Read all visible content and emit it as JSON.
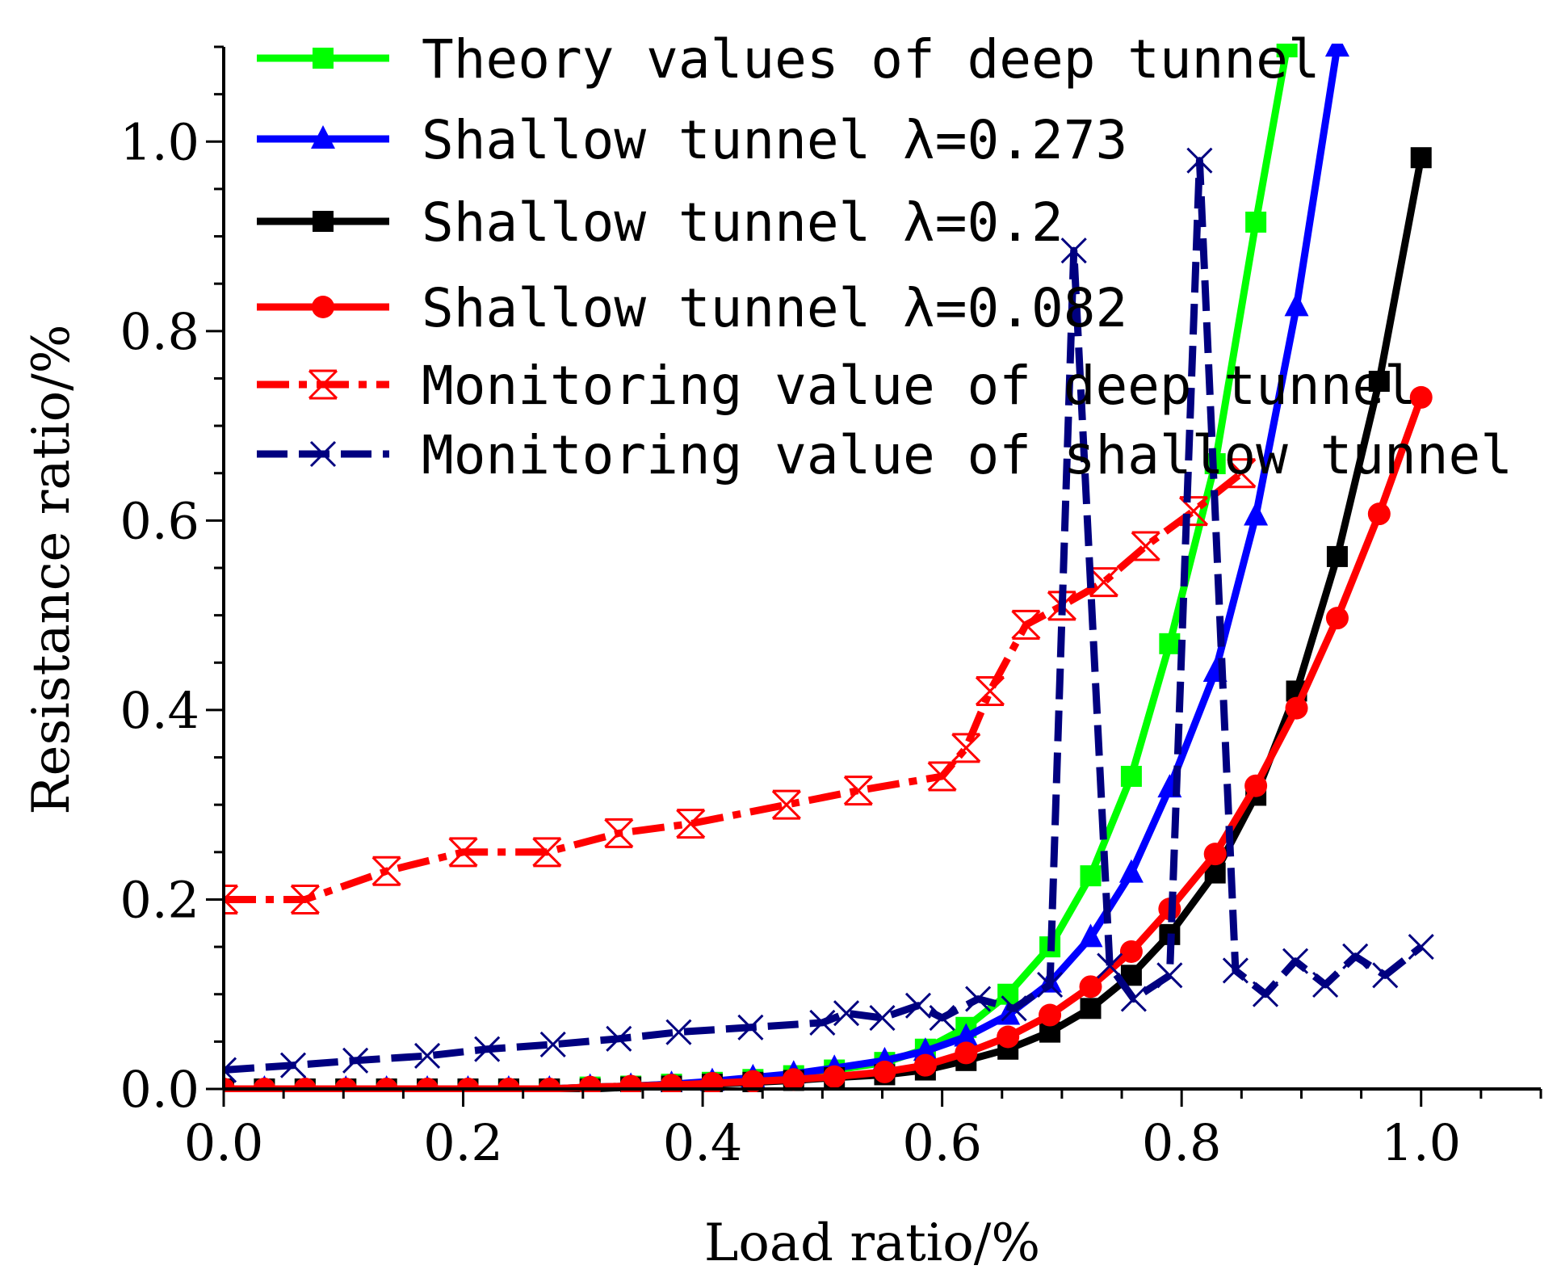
{
  "chart_data": {
    "type": "line",
    "title": "",
    "xlabel": "Load ratio/%",
    "ylabel": "Resistance ratio/%",
    "xlim": [
      0.0,
      1.1
    ],
    "ylim": [
      0.0,
      1.1
    ],
    "xticks": [
      0.0,
      0.2,
      0.4,
      0.6,
      0.8,
      1.0
    ],
    "yticks": [
      0.0,
      0.2,
      0.4,
      0.6,
      0.8,
      1.0
    ],
    "xtick_labels": [
      "0.0",
      "0.2",
      "0.4",
      "0.6",
      "0.8",
      "1.0"
    ],
    "ytick_labels": [
      "0.0",
      "0.2",
      "0.4",
      "0.6",
      "0.8",
      "1.0"
    ],
    "grid": false,
    "legend_position": "top",
    "series": [
      {
        "name": "Theory values of deep tunnel",
        "color": "#00ff00",
        "marker": "square",
        "line": "solid",
        "x": [
          0.0,
          0.034,
          0.068,
          0.102,
          0.136,
          0.17,
          0.204,
          0.238,
          0.272,
          0.306,
          0.34,
          0.374,
          0.408,
          0.442,
          0.476,
          0.51,
          0.552,
          0.586,
          0.62,
          0.655,
          0.69,
          0.724,
          0.758,
          0.79,
          0.828,
          0.862,
          0.888
        ],
        "y": [
          0.0,
          0.0,
          0.0,
          0.0,
          0.0,
          0.0,
          0.0,
          0.0,
          0.0,
          0.002,
          0.003,
          0.005,
          0.007,
          0.01,
          0.014,
          0.02,
          0.028,
          0.042,
          0.065,
          0.1,
          0.15,
          0.225,
          0.33,
          0.47,
          0.66,
          0.915,
          1.1
        ]
      },
      {
        "name": "Shallow tunnel λ=0.273",
        "color": "#0000ff",
        "marker": "triangle",
        "line": "solid",
        "x": [
          0.0,
          0.034,
          0.068,
          0.102,
          0.136,
          0.17,
          0.204,
          0.238,
          0.272,
          0.306,
          0.34,
          0.374,
          0.408,
          0.442,
          0.476,
          0.51,
          0.552,
          0.586,
          0.62,
          0.655,
          0.69,
          0.724,
          0.758,
          0.79,
          0.828,
          0.862,
          0.896,
          0.93
        ],
        "y": [
          0.0,
          0.0,
          0.0,
          0.0,
          0.0,
          0.0,
          0.0,
          0.0,
          0.0,
          0.002,
          0.003,
          0.005,
          0.008,
          0.012,
          0.016,
          0.022,
          0.03,
          0.04,
          0.055,
          0.078,
          0.112,
          0.16,
          0.228,
          0.318,
          0.44,
          0.605,
          0.826,
          1.1
        ]
      },
      {
        "name": "Shallow tunnel λ=0.2",
        "color": "#000000",
        "marker": "square",
        "line": "solid",
        "x": [
          0.0,
          0.034,
          0.068,
          0.102,
          0.136,
          0.17,
          0.204,
          0.238,
          0.272,
          0.306,
          0.34,
          0.374,
          0.408,
          0.442,
          0.476,
          0.51,
          0.552,
          0.586,
          0.62,
          0.655,
          0.69,
          0.724,
          0.758,
          0.79,
          0.828,
          0.862,
          0.896,
          0.93,
          0.965,
          1.0
        ],
        "y": [
          0.0,
          0.0,
          0.0,
          0.0,
          0.0,
          0.0,
          0.0,
          0.0,
          0.0,
          0.0,
          0.002,
          0.003,
          0.005,
          0.007,
          0.009,
          0.012,
          0.015,
          0.02,
          0.03,
          0.042,
          0.06,
          0.085,
          0.12,
          0.163,
          0.228,
          0.31,
          0.42,
          0.562,
          0.747,
          0.983
        ]
      },
      {
        "name": "Shallow tunnel λ=0.082",
        "color": "#ff0000",
        "marker": "circle",
        "line": "solid",
        "x": [
          0.0,
          0.034,
          0.068,
          0.102,
          0.136,
          0.17,
          0.204,
          0.238,
          0.272,
          0.306,
          0.34,
          0.374,
          0.408,
          0.442,
          0.476,
          0.51,
          0.552,
          0.586,
          0.62,
          0.655,
          0.69,
          0.724,
          0.758,
          0.79,
          0.828,
          0.862,
          0.896,
          0.93,
          0.965,
          1.0
        ],
        "y": [
          0.0,
          0.0,
          0.0,
          0.0,
          0.0,
          0.0,
          0.0,
          0.0,
          0.0,
          0.002,
          0.003,
          0.004,
          0.006,
          0.008,
          0.01,
          0.013,
          0.018,
          0.025,
          0.038,
          0.055,
          0.078,
          0.108,
          0.145,
          0.19,
          0.248,
          0.32,
          0.402,
          0.497,
          0.607,
          0.73
        ]
      },
      {
        "name": "Monitoring value of deep tunnel",
        "color": "#ff0000",
        "marker": "star-x",
        "line": "dash-dot",
        "x": [
          0.0,
          0.068,
          0.136,
          0.2,
          0.27,
          0.33,
          0.39,
          0.47,
          0.53,
          0.6,
          0.62,
          0.64,
          0.67,
          0.7,
          0.735,
          0.77,
          0.81,
          0.85
        ],
        "y": [
          0.2,
          0.2,
          0.23,
          0.25,
          0.25,
          0.27,
          0.28,
          0.3,
          0.315,
          0.33,
          0.36,
          0.42,
          0.49,
          0.51,
          0.535,
          0.573,
          0.61,
          0.65
        ]
      },
      {
        "name": "Monitoring value of shallow tunnel",
        "color": "#000080",
        "marker": "x",
        "line": "dashed",
        "x": [
          0.0,
          0.058,
          0.11,
          0.17,
          0.22,
          0.275,
          0.33,
          0.38,
          0.44,
          0.5,
          0.52,
          0.55,
          0.58,
          0.6,
          0.63,
          0.66,
          0.69,
          0.71,
          0.74,
          0.76,
          0.79,
          0.815,
          0.845,
          0.87,
          0.895,
          0.92,
          0.945,
          0.97,
          1.0
        ],
        "y": [
          0.02,
          0.025,
          0.03,
          0.035,
          0.042,
          0.047,
          0.053,
          0.06,
          0.065,
          0.07,
          0.08,
          0.075,
          0.088,
          0.075,
          0.095,
          0.085,
          0.11,
          0.885,
          0.13,
          0.095,
          0.12,
          0.98,
          0.125,
          0.1,
          0.135,
          0.11,
          0.14,
          0.12,
          0.15
        ]
      }
    ]
  }
}
